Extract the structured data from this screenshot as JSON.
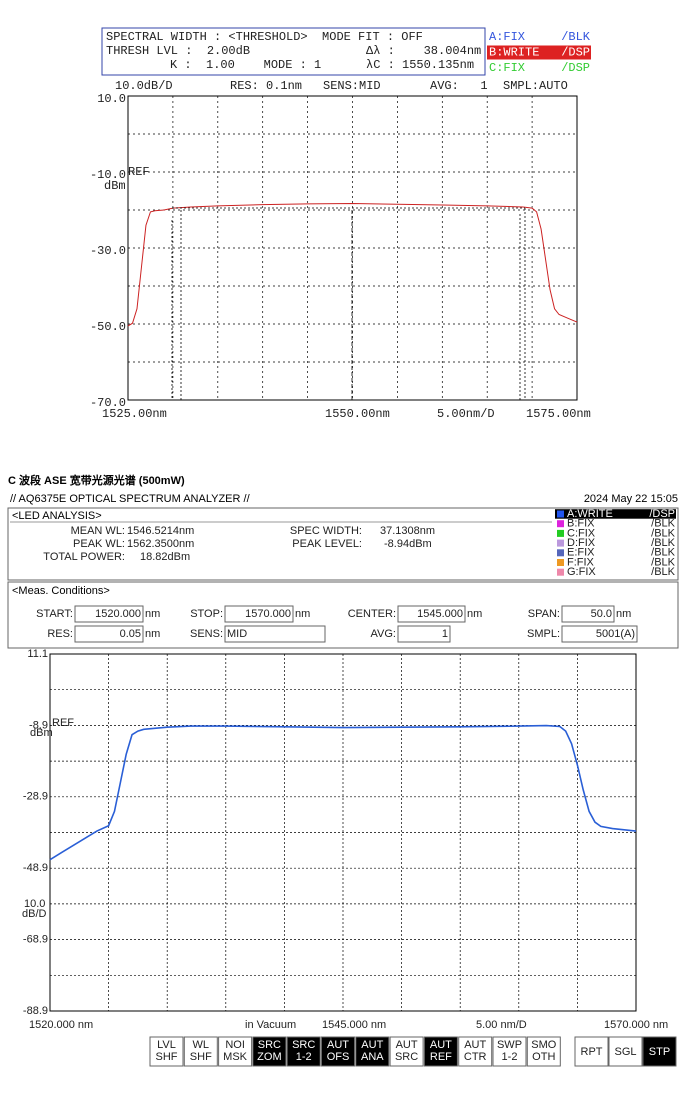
{
  "screen1": {
    "header": {
      "line1": "SPECTRAL WIDTH : <THRESHOLD>  MODE FIT : OFF",
      "thresh": "THRESH LVL :  2.00dB",
      "dl": "Δλ :    38.004nm",
      "k": "K :  1.00    MODE : 1",
      "lc": "λC : 1550.135nm"
    },
    "legend": [
      {
        "label": "A:FIX",
        "mode": "/BLK",
        "color": "#3355dd",
        "highlight": false
      },
      {
        "label": "B:WRITE",
        "mode": "/DSP",
        "color": "#dd2222",
        "highlight": true
      },
      {
        "label": "C:FIX",
        "mode": "/DSP",
        "color": "#33cc33",
        "highlight": false
      }
    ],
    "status": [
      "10.0dB/D",
      "RES: 0.1nm",
      "SENS:MID",
      "AVG:   1",
      "SMPL:AUTO"
    ],
    "plot": {
      "xlim": [
        1525,
        1575
      ],
      "ylim": [
        -70,
        10
      ],
      "xgrid": [
        1525,
        1530,
        1535,
        1540,
        1545,
        1550,
        1555,
        1560,
        1565,
        1570,
        1575
      ],
      "ygrid": [
        10,
        0,
        -10,
        -20,
        -30,
        -40,
        -50,
        -60,
        -70
      ],
      "yticks": [
        {
          "value": 10,
          "label": "10.0"
        },
        {
          "value": -10,
          "label": "-10.0"
        },
        {
          "value": -30,
          "label": "-30.0"
        },
        {
          "value": -50,
          "label": "-50.0"
        },
        {
          "value": -70,
          "label": "-70.0"
        }
      ],
      "ref_label": "REF",
      "unit": "dBm",
      "x_labels": [
        "1525.00nm",
        "1550.00nm",
        "5.00nm/D",
        "1575.00nm"
      ],
      "trace": {
        "color": "#cc2222",
        "x": [
          1525,
          1525.5,
          1526,
          1526.5,
          1527,
          1527.5,
          1528,
          1529,
          1530,
          1532,
          1535,
          1540,
          1545,
          1550,
          1555,
          1560,
          1565,
          1569,
          1570,
          1570.5,
          1571,
          1571.5,
          1572,
          1572.5,
          1573,
          1574,
          1575
        ],
        "y": [
          -50.5,
          -49.8,
          -46,
          -35,
          -24,
          -20.5,
          -20.2,
          -20,
          -19.5,
          -19.2,
          -18.9,
          -18.6,
          -18.4,
          -18.3,
          -18.5,
          -18.7,
          -18.9,
          -19.2,
          -19.5,
          -20.5,
          -25,
          -33,
          -41,
          -46,
          -47.5,
          -48.5,
          -49.5
        ]
      }
    }
  },
  "screen2": {
    "title": "C 波段 ASE 宽带光源光谱 (500mW)",
    "instrument": "// AQ6375E OPTICAL SPECTRUM ANALYZER //",
    "date": "2024 May 22 15:05",
    "analysis": {
      "heading": "<LED ANALYSIS>",
      "items": [
        {
          "label": "MEAN WL:",
          "value": "1546.5214nm"
        },
        {
          "label": "PEAK WL:",
          "value": "1562.3500nm"
        },
        {
          "label": "TOTAL POWER:",
          "value": "18.82dBm"
        },
        {
          "label": "SPEC WIDTH:",
          "value": "37.1308nm"
        },
        {
          "label": "PEAK LEVEL:",
          "value": "-8.94dBm"
        }
      ]
    },
    "legend": [
      {
        "label": "A:WRITE",
        "mode": "/DSP",
        "color": "#2255ee",
        "highlight": true
      },
      {
        "label": "B:FIX",
        "mode": "/BLK",
        "color": "#dd22dd",
        "highlight": false
      },
      {
        "label": "C:FIX",
        "mode": "/BLK",
        "color": "#22cc22",
        "highlight": false
      },
      {
        "label": "D:FIX",
        "mode": "/BLK",
        "color": "#bb99dd",
        "highlight": false
      },
      {
        "label": "E:FIX",
        "mode": "/BLK",
        "color": "#5566bb",
        "highlight": false
      },
      {
        "label": "F:FIX",
        "mode": "/BLK",
        "color": "#ee9922",
        "highlight": false
      },
      {
        "label": "G:FIX",
        "mode": "/BLK",
        "color": "#ee88aa",
        "highlight": false
      }
    ],
    "conditions": {
      "heading": "<Meas. Conditions>",
      "fields": [
        {
          "label": "START:",
          "value": "1520.000",
          "unit": "nm"
        },
        {
          "label": "STOP:",
          "value": "1570.000",
          "unit": "nm"
        },
        {
          "label": "CENTER:",
          "value": "1545.000",
          "unit": "nm"
        },
        {
          "label": "SPAN:",
          "value": "50.0",
          "unit": "nm"
        },
        {
          "label": "RES:",
          "value": "0.05",
          "unit": "nm"
        },
        {
          "label": "SENS:",
          "value": "MID"
        },
        {
          "label": "AVG:",
          "value": "1"
        },
        {
          "label": "SMPL:",
          "value": "5001(A)"
        }
      ]
    },
    "plot": {
      "xlim": [
        1520,
        1570
      ],
      "ylim": [
        -88.9,
        11.1
      ],
      "xgrid": [
        1520,
        1525,
        1530,
        1535,
        1540,
        1545,
        1550,
        1555,
        1560,
        1565,
        1570
      ],
      "ygrid": [
        11.1,
        1.1,
        -8.9,
        -18.9,
        -28.9,
        -38.9,
        -48.9,
        -58.9,
        -68.9,
        -78.9,
        -88.9
      ],
      "yticks": [
        11.1,
        -8.9,
        -28.9,
        -48.9,
        -68.9,
        -88.9
      ],
      "ref_label": "REF",
      "unit": "dBm",
      "scale_label": "10.0",
      "scale_unit": "dB/D",
      "x_labels": [
        "1520.000 nm",
        "in Vacuum",
        "1545.000 nm",
        "5.00 nm/D",
        "1570.000 nm"
      ],
      "trace": {
        "color": "#2a5fd6",
        "x": [
          1520,
          1521,
          1522,
          1523,
          1524,
          1525,
          1525.5,
          1526,
          1526.5,
          1527,
          1527.5,
          1528,
          1530,
          1532,
          1535,
          1540,
          1545,
          1550,
          1555,
          1560,
          1562.35,
          1563.5,
          1564,
          1564.5,
          1565,
          1565.5,
          1566,
          1566.5,
          1567,
          1568,
          1570
        ],
        "y": [
          -46.5,
          -44.5,
          -42.5,
          -40.5,
          -38.5,
          -37,
          -33,
          -25,
          -17,
          -11.5,
          -10.5,
          -10,
          -9.4,
          -9.1,
          -9.1,
          -9.3,
          -9.5,
          -9.4,
          -9.3,
          -9.1,
          -8.94,
          -9.2,
          -10.5,
          -14,
          -20,
          -27,
          -33,
          -36,
          -37.2,
          -37.8,
          -38.5
        ]
      }
    },
    "buttons": [
      {
        "label": [
          "LVL",
          "SHF"
        ],
        "active": false
      },
      {
        "label": [
          "WL",
          "SHF"
        ],
        "active": false
      },
      {
        "label": [
          "NOI",
          "MSK"
        ],
        "active": false
      },
      {
        "label": [
          "SRC",
          "ZOM"
        ],
        "active": true
      },
      {
        "label": [
          "SRC",
          "1-2"
        ],
        "active": true
      },
      {
        "label": [
          "AUT",
          "OFS"
        ],
        "active": true
      },
      {
        "label": [
          "AUT",
          "ANA"
        ],
        "active": true
      },
      {
        "label": [
          "AUT",
          "SRC"
        ],
        "active": false
      },
      {
        "label": [
          "AUT",
          "REF"
        ],
        "active": true
      },
      {
        "label": [
          "AUT",
          "CTR"
        ],
        "active": false
      },
      {
        "label": [
          "SWP",
          "1-2"
        ],
        "active": false
      },
      {
        "label": [
          "SMO",
          "OTH"
        ],
        "active": false
      }
    ],
    "run_buttons": [
      {
        "label": "RPT",
        "active": false
      },
      {
        "label": "SGL",
        "active": false
      },
      {
        "label": "STP",
        "active": true
      }
    ]
  }
}
